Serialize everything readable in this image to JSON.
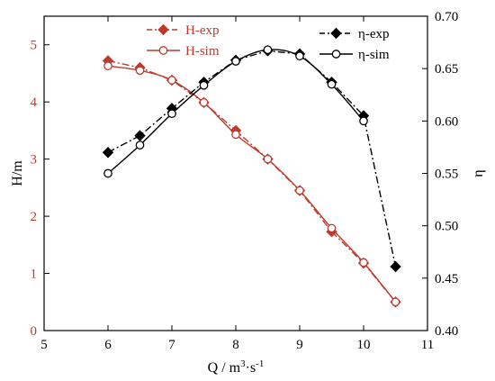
{
  "chart_data": {
    "type": "line",
    "xlabel": {
      "main": "Q / m",
      "sup1": "3",
      "mid": "·s",
      "sup2": "-1"
    },
    "ylabel_left": "H/m",
    "ylabel_right": "η",
    "xlim": [
      5,
      11
    ],
    "ylim_left": [
      0,
      5.5
    ],
    "ylim_right": [
      0.4,
      0.7
    ],
    "xticks": [
      "5",
      "6",
      "7",
      "8",
      "9",
      "10",
      "11"
    ],
    "yticks_left": [
      "0",
      "1",
      "2",
      "3",
      "4",
      "5"
    ],
    "yticks_right": [
      "0.40",
      "0.45",
      "0.50",
      "0.55",
      "0.60",
      "0.65",
      "0.70"
    ],
    "colors": {
      "head": "#c0392b",
      "efficiency": "#000000"
    },
    "legend_location": "top",
    "series": [
      {
        "name": "H-exp",
        "axis": "left",
        "style": "dash-dot",
        "marker": "filled-diamond",
        "x": [
          6,
          6.5,
          7,
          7.5,
          8,
          8.5,
          9,
          9.5,
          10,
          10.5
        ],
        "y": [
          4.72,
          4.6,
          4.38,
          3.99,
          3.5,
          3.0,
          2.45,
          1.73,
          1.18,
          0.5
        ]
      },
      {
        "name": "H-sim",
        "axis": "left",
        "style": "solid",
        "marker": "open-circle",
        "x": [
          6,
          6.5,
          7,
          7.5,
          8,
          8.5,
          9,
          9.5,
          10,
          10.5
        ],
        "y": [
          4.63,
          4.55,
          4.38,
          3.99,
          3.43,
          3.0,
          2.45,
          1.79,
          1.19,
          0.5
        ]
      },
      {
        "name": "η-exp",
        "axis": "right",
        "style": "dash-dot",
        "marker": "filled-diamond",
        "x": [
          6,
          6.5,
          7,
          7.5,
          8,
          8.5,
          9,
          9.5,
          10,
          10.5
        ],
        "y": [
          0.57,
          0.586,
          0.612,
          0.637,
          0.658,
          0.667,
          0.664,
          0.637,
          0.605,
          0.461
        ]
      },
      {
        "name": "η-sim",
        "axis": "right",
        "style": "solid",
        "marker": "open-circle",
        "x": [
          6,
          6.5,
          7,
          7.5,
          8,
          8.5,
          9,
          9.5,
          10
        ],
        "y": [
          0.55,
          0.577,
          0.607,
          0.634,
          0.657,
          0.668,
          0.662,
          0.635,
          0.6
        ]
      }
    ]
  }
}
